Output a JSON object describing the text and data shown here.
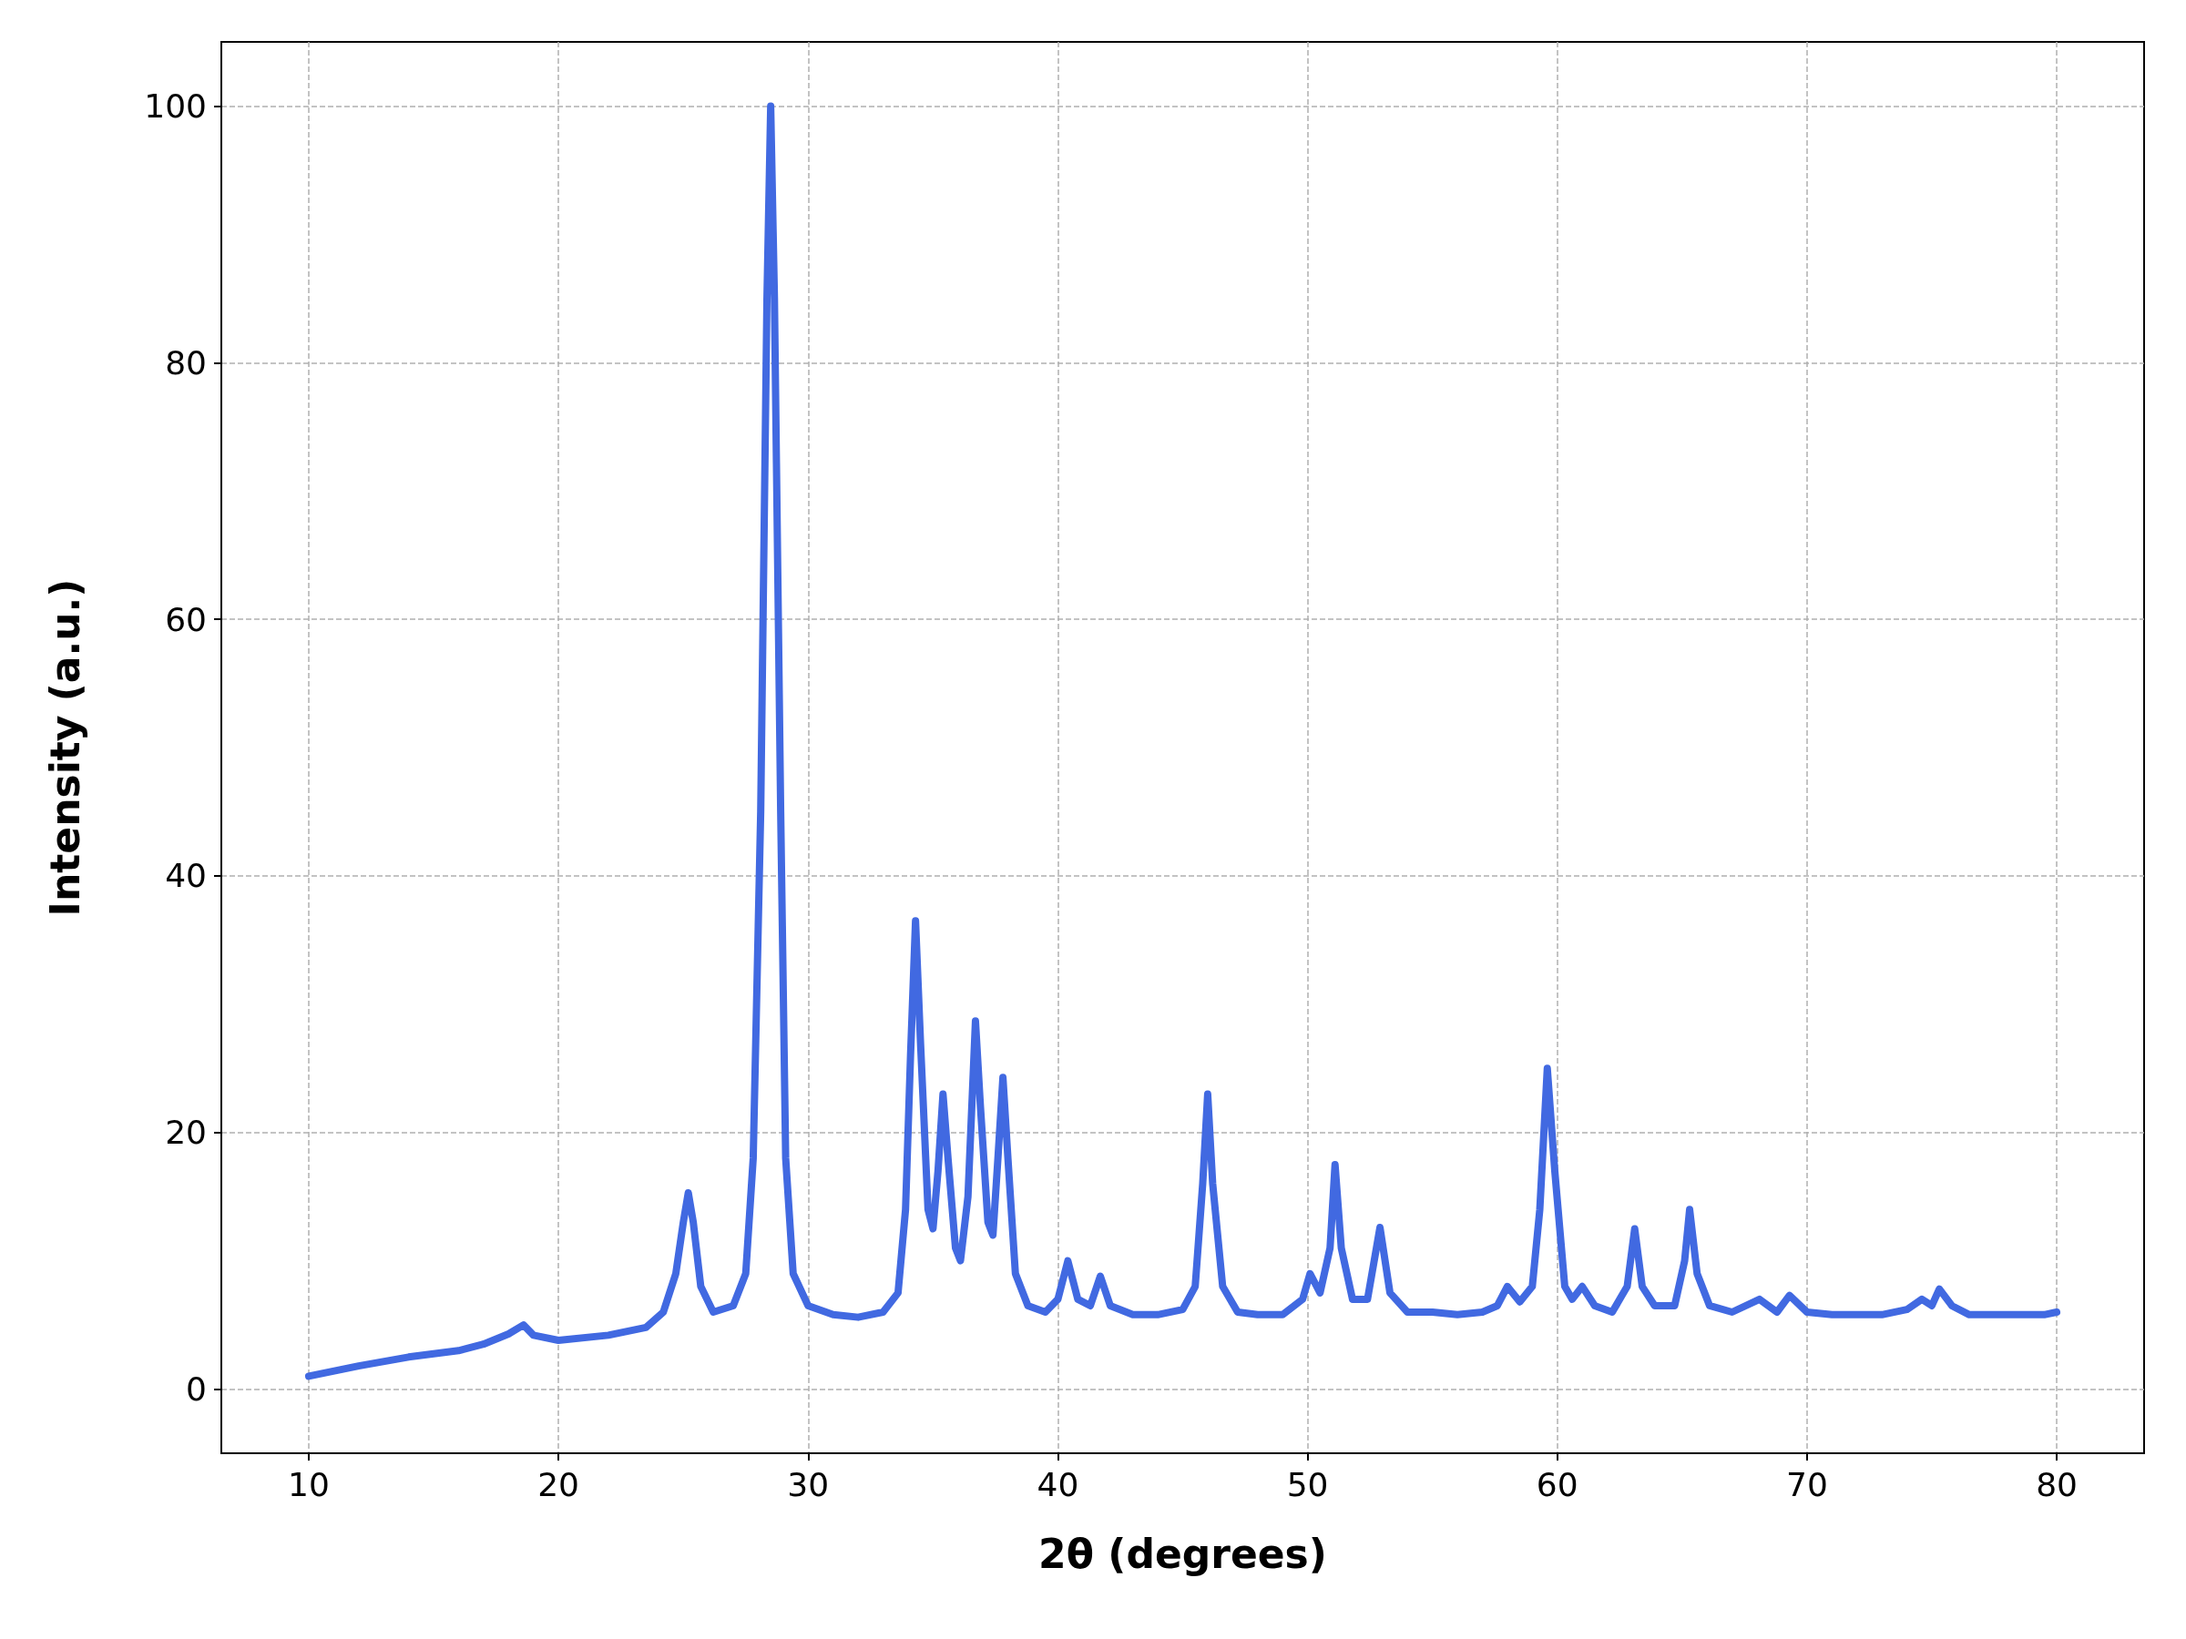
{
  "chart_data": {
    "type": "line",
    "xlabel": "2θ (degrees)",
    "ylabel": "Intensity (a.u.)",
    "color": "#4169e1",
    "marker": "none",
    "line_style": "solid",
    "grid": true,
    "xlim": [
      6.5,
      83.5
    ],
    "xticks": [
      10,
      20,
      30,
      40,
      50,
      60,
      70,
      80
    ],
    "ylim": [
      -5,
      105
    ],
    "yticks": [
      0,
      20,
      40,
      60,
      80,
      100
    ],
    "x": [
      10,
      12,
      14,
      16,
      17,
      18,
      18.6,
      19,
      20,
      22,
      23.5,
      24.2,
      24.7,
      25.0,
      25.2,
      25.4,
      25.7,
      26.2,
      27,
      27.5,
      27.8,
      28.1,
      28.35,
      28.5,
      28.65,
      28.9,
      29.1,
      29.4,
      30,
      31,
      32,
      33,
      33.6,
      33.9,
      34.1,
      34.3,
      34.5,
      34.8,
      35.0,
      35.2,
      35.4,
      35.6,
      35.9,
      36.1,
      36.4,
      36.7,
      36.9,
      37.2,
      37.4,
      37.6,
      37.8,
      38.0,
      38.3,
      38.8,
      39.5,
      40.0,
      40.4,
      40.8,
      41.3,
      41.7,
      42.1,
      43,
      44,
      45,
      45.5,
      45.8,
      46.0,
      46.2,
      46.6,
      47.2,
      48,
      49,
      49.8,
      50.1,
      50.5,
      50.9,
      51.1,
      51.35,
      51.8,
      52.4,
      52.9,
      53.3,
      54,
      55,
      56,
      57,
      57.6,
      58.0,
      58.5,
      59.0,
      59.3,
      59.6,
      59.9,
      60.3,
      60.6,
      61.0,
      61.5,
      62.2,
      62.8,
      63.1,
      63.4,
      63.9,
      64.7,
      65.1,
      65.3,
      65.6,
      66.1,
      67,
      68.1,
      68.8,
      69.3,
      70,
      71,
      72,
      73,
      74,
      74.6,
      75.0,
      75.3,
      75.8,
      76.5,
      77.5,
      78.5,
      79.5,
      80
    ],
    "values": [
      1,
      1.8,
      2.5,
      3,
      3.5,
      4.3,
      5,
      4.2,
      3.8,
      4.2,
      4.8,
      6,
      9,
      13,
      15.3,
      13,
      8,
      6,
      6.5,
      9,
      18,
      45,
      85,
      100,
      85,
      45,
      18,
      9,
      6.5,
      5.8,
      5.6,
      6,
      7.5,
      14,
      26,
      36.5,
      27,
      14,
      12.5,
      17,
      23,
      18,
      11,
      10,
      15,
      28.7,
      22,
      13,
      12,
      18,
      24.3,
      18,
      9,
      6.5,
      6,
      7,
      10,
      7,
      6.5,
      8.8,
      6.5,
      5.8,
      5.8,
      6.2,
      8,
      16,
      23,
      16,
      8,
      6,
      5.8,
      5.8,
      7,
      9,
      7.5,
      11,
      17.5,
      11,
      7,
      7,
      12.6,
      7.5,
      6,
      6,
      5.8,
      6,
      6.5,
      8,
      6.8,
      8,
      14,
      25,
      17,
      8,
      7,
      8,
      6.5,
      6,
      8,
      12.5,
      8,
      6.5,
      6.5,
      10,
      14,
      9,
      6.5,
      6,
      7,
      6,
      7.3,
      6,
      5.8,
      5.8,
      5.8,
      6.2,
      7,
      6.5,
      7.8,
      6.5,
      5.8,
      5.8,
      5.8,
      5.8,
      6
    ]
  }
}
